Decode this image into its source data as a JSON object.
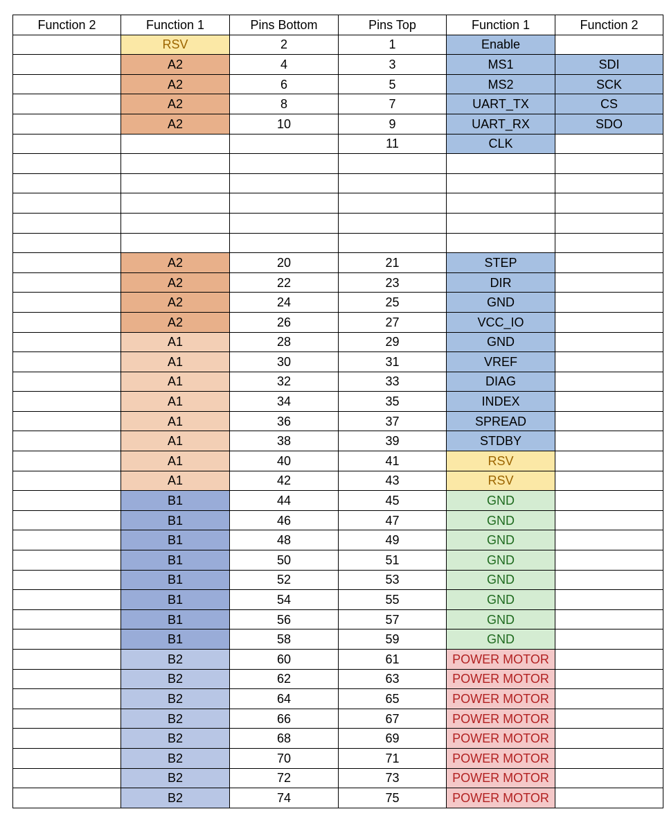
{
  "columns": [
    "Function 2",
    "Function 1",
    "Pins Bottom",
    "Pins Top",
    "Function 1",
    "Function 2"
  ],
  "colors": {
    "rsv": "#fbe8a6",
    "a2": "#e8b08a",
    "a1": "#f3cfb5",
    "b1": "#99acd8",
    "b2": "#b8c6e5",
    "blue": "#a6c0e2",
    "gnd": "#d4ecd2",
    "power": "#f4c8c8"
  },
  "rows": [
    {
      "bf2": "",
      "bf1": "RSV",
      "bf1c": "rsv",
      "bp": "2",
      "tp": "1",
      "tf1": "Enable",
      "tf1c": "blue",
      "tf2": "",
      "tf2c": ""
    },
    {
      "bf2": "",
      "bf1": "A2",
      "bf1c": "a2",
      "bp": "4",
      "tp": "3",
      "tf1": "MS1",
      "tf1c": "blue",
      "tf2": "SDI",
      "tf2c": "blue"
    },
    {
      "bf2": "",
      "bf1": "A2",
      "bf1c": "a2",
      "bp": "6",
      "tp": "5",
      "tf1": "MS2",
      "tf1c": "blue",
      "tf2": "SCK",
      "tf2c": "blue"
    },
    {
      "bf2": "",
      "bf1": "A2",
      "bf1c": "a2",
      "bp": "8",
      "tp": "7",
      "tf1": "UART_TX",
      "tf1c": "blue",
      "tf2": "CS",
      "tf2c": "blue"
    },
    {
      "bf2": "",
      "bf1": "A2",
      "bf1c": "a2",
      "bp": "10",
      "tp": "9",
      "tf1": "UART_RX",
      "tf1c": "blue",
      "tf2": "SDO",
      "tf2c": "blue"
    },
    {
      "bf2": "",
      "bf1": "",
      "bf1c": "",
      "bp": "",
      "tp": "11",
      "tf1": "CLK",
      "tf1c": "blue",
      "tf2": "",
      "tf2c": ""
    },
    {
      "bf2": "",
      "bf1": "",
      "bf1c": "",
      "bp": "",
      "tp": "",
      "tf1": "",
      "tf1c": "",
      "tf2": "",
      "tf2c": ""
    },
    {
      "bf2": "",
      "bf1": "",
      "bf1c": "",
      "bp": "",
      "tp": "",
      "tf1": "",
      "tf1c": "",
      "tf2": "",
      "tf2c": ""
    },
    {
      "bf2": "",
      "bf1": "",
      "bf1c": "",
      "bp": "",
      "tp": "",
      "tf1": "",
      "tf1c": "",
      "tf2": "",
      "tf2c": ""
    },
    {
      "bf2": "",
      "bf1": "",
      "bf1c": "",
      "bp": "",
      "tp": "",
      "tf1": "",
      "tf1c": "",
      "tf2": "",
      "tf2c": ""
    },
    {
      "bf2": "",
      "bf1": "",
      "bf1c": "",
      "bp": "",
      "tp": "",
      "tf1": "",
      "tf1c": "",
      "tf2": "",
      "tf2c": ""
    },
    {
      "bf2": "",
      "bf1": "A2",
      "bf1c": "a2",
      "bp": "20",
      "tp": "21",
      "tf1": "STEP",
      "tf1c": "blue",
      "tf2": "",
      "tf2c": ""
    },
    {
      "bf2": "",
      "bf1": "A2",
      "bf1c": "a2",
      "bp": "22",
      "tp": "23",
      "tf1": "DIR",
      "tf1c": "blue",
      "tf2": "",
      "tf2c": ""
    },
    {
      "bf2": "",
      "bf1": "A2",
      "bf1c": "a2",
      "bp": "24",
      "tp": "25",
      "tf1": "GND",
      "tf1c": "blue",
      "tf2": "",
      "tf2c": ""
    },
    {
      "bf2": "",
      "bf1": "A2",
      "bf1c": "a2",
      "bp": "26",
      "tp": "27",
      "tf1": "VCC_IO",
      "tf1c": "blue",
      "tf2": "",
      "tf2c": ""
    },
    {
      "bf2": "",
      "bf1": "A1",
      "bf1c": "a1",
      "bp": "28",
      "tp": "29",
      "tf1": "GND",
      "tf1c": "blue",
      "tf2": "",
      "tf2c": ""
    },
    {
      "bf2": "",
      "bf1": "A1",
      "bf1c": "a1",
      "bp": "30",
      "tp": "31",
      "tf1": "VREF",
      "tf1c": "blue",
      "tf2": "",
      "tf2c": ""
    },
    {
      "bf2": "",
      "bf1": "A1",
      "bf1c": "a1",
      "bp": "32",
      "tp": "33",
      "tf1": "DIAG",
      "tf1c": "blue",
      "tf2": "",
      "tf2c": ""
    },
    {
      "bf2": "",
      "bf1": "A1",
      "bf1c": "a1",
      "bp": "34",
      "tp": "35",
      "tf1": "INDEX",
      "tf1c": "blue",
      "tf2": "",
      "tf2c": ""
    },
    {
      "bf2": "",
      "bf1": "A1",
      "bf1c": "a1",
      "bp": "36",
      "tp": "37",
      "tf1": "SPREAD",
      "tf1c": "blue",
      "tf2": "",
      "tf2c": ""
    },
    {
      "bf2": "",
      "bf1": "A1",
      "bf1c": "a1",
      "bp": "38",
      "tp": "39",
      "tf1": "STDBY",
      "tf1c": "blue",
      "tf2": "",
      "tf2c": ""
    },
    {
      "bf2": "",
      "bf1": "A1",
      "bf1c": "a1",
      "bp": "40",
      "tp": "41",
      "tf1": "RSV",
      "tf1c": "rsv",
      "tf2": "",
      "tf2c": ""
    },
    {
      "bf2": "",
      "bf1": "A1",
      "bf1c": "a1",
      "bp": "42",
      "tp": "43",
      "tf1": "RSV",
      "tf1c": "rsv",
      "tf2": "",
      "tf2c": ""
    },
    {
      "bf2": "",
      "bf1": "B1",
      "bf1c": "b1",
      "bp": "44",
      "tp": "45",
      "tf1": "GND",
      "tf1c": "gnd",
      "tf2": "",
      "tf2c": ""
    },
    {
      "bf2": "",
      "bf1": "B1",
      "bf1c": "b1",
      "bp": "46",
      "tp": "47",
      "tf1": "GND",
      "tf1c": "gnd",
      "tf2": "",
      "tf2c": ""
    },
    {
      "bf2": "",
      "bf1": "B1",
      "bf1c": "b1",
      "bp": "48",
      "tp": "49",
      "tf1": "GND",
      "tf1c": "gnd",
      "tf2": "",
      "tf2c": ""
    },
    {
      "bf2": "",
      "bf1": "B1",
      "bf1c": "b1",
      "bp": "50",
      "tp": "51",
      "tf1": "GND",
      "tf1c": "gnd",
      "tf2": "",
      "tf2c": ""
    },
    {
      "bf2": "",
      "bf1": "B1",
      "bf1c": "b1",
      "bp": "52",
      "tp": "53",
      "tf1": "GND",
      "tf1c": "gnd",
      "tf2": "",
      "tf2c": ""
    },
    {
      "bf2": "",
      "bf1": "B1",
      "bf1c": "b1",
      "bp": "54",
      "tp": "55",
      "tf1": "GND",
      "tf1c": "gnd",
      "tf2": "",
      "tf2c": ""
    },
    {
      "bf2": "",
      "bf1": "B1",
      "bf1c": "b1",
      "bp": "56",
      "tp": "57",
      "tf1": "GND",
      "tf1c": "gnd",
      "tf2": "",
      "tf2c": ""
    },
    {
      "bf2": "",
      "bf1": "B1",
      "bf1c": "b1",
      "bp": "58",
      "tp": "59",
      "tf1": "GND",
      "tf1c": "gnd",
      "tf2": "",
      "tf2c": ""
    },
    {
      "bf2": "",
      "bf1": "B2",
      "bf1c": "b2",
      "bp": "60",
      "tp": "61",
      "tf1": "POWER MOTOR",
      "tf1c": "power",
      "tf2": "",
      "tf2c": ""
    },
    {
      "bf2": "",
      "bf1": "B2",
      "bf1c": "b2",
      "bp": "62",
      "tp": "63",
      "tf1": "POWER MOTOR",
      "tf1c": "power",
      "tf2": "",
      "tf2c": ""
    },
    {
      "bf2": "",
      "bf1": "B2",
      "bf1c": "b2",
      "bp": "64",
      "tp": "65",
      "tf1": "POWER MOTOR",
      "tf1c": "power",
      "tf2": "",
      "tf2c": ""
    },
    {
      "bf2": "",
      "bf1": "B2",
      "bf1c": "b2",
      "bp": "66",
      "tp": "67",
      "tf1": "POWER MOTOR",
      "tf1c": "power",
      "tf2": "",
      "tf2c": ""
    },
    {
      "bf2": "",
      "bf1": "B2",
      "bf1c": "b2",
      "bp": "68",
      "tp": "69",
      "tf1": "POWER MOTOR",
      "tf1c": "power",
      "tf2": "",
      "tf2c": ""
    },
    {
      "bf2": "",
      "bf1": "B2",
      "bf1c": "b2",
      "bp": "70",
      "tp": "71",
      "tf1": "POWER MOTOR",
      "tf1c": "power",
      "tf2": "",
      "tf2c": ""
    },
    {
      "bf2": "",
      "bf1": "B2",
      "bf1c": "b2",
      "bp": "72",
      "tp": "73",
      "tf1": "POWER MOTOR",
      "tf1c": "power",
      "tf2": "",
      "tf2c": ""
    },
    {
      "bf2": "",
      "bf1": "B2",
      "bf1c": "b2",
      "bp": "74",
      "tp": "75",
      "tf1": "POWER MOTOR",
      "tf1c": "power",
      "tf2": "",
      "tf2c": ""
    }
  ]
}
